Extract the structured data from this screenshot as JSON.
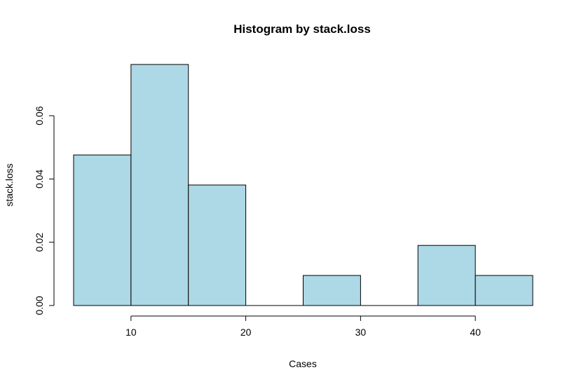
{
  "chart_data": {
    "type": "bar",
    "title": "Histogram by stack.loss",
    "xlabel": "Cases",
    "ylabel": "stack.loss",
    "bins": [
      {
        "from": 5,
        "to": 10,
        "value": 0.0476
      },
      {
        "from": 10,
        "to": 15,
        "value": 0.0762
      },
      {
        "from": 15,
        "to": 20,
        "value": 0.0381
      },
      {
        "from": 20,
        "to": 25,
        "value": 0.0
      },
      {
        "from": 25,
        "to": 30,
        "value": 0.0095
      },
      {
        "from": 30,
        "to": 35,
        "value": 0.0
      },
      {
        "from": 35,
        "to": 40,
        "value": 0.019
      },
      {
        "from": 40,
        "to": 45,
        "value": 0.0095
      }
    ],
    "xlim": [
      5,
      45
    ],
    "ylim": [
      0,
      0.0762
    ],
    "xticks": [
      10,
      20,
      30,
      40
    ],
    "xtick_labels": [
      "10",
      "20",
      "30",
      "40"
    ],
    "yticks": [
      0,
      0.02,
      0.04,
      0.06
    ],
    "ytick_labels": [
      "0.00",
      "0.02",
      "0.04",
      "0.06"
    ],
    "grid": false,
    "bar_color": "#ADD8E6",
    "edge_color": "#000000"
  }
}
